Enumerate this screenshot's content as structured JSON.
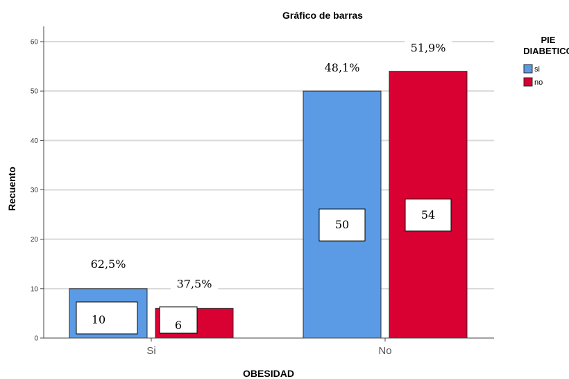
{
  "chart_data": {
    "type": "bar",
    "title": "Gráfico de barras",
    "xlabel": "OBESIDAD",
    "ylabel": "Recuento",
    "categories": [
      "Si",
      "No"
    ],
    "ylim": [
      0,
      60
    ],
    "yticks": [
      0,
      10,
      20,
      30,
      40,
      50,
      60
    ],
    "grid": true,
    "legend_title_lines": [
      "PIE",
      "DIABETICO"
    ],
    "legend_position": "top-right",
    "series": [
      {
        "name": "si",
        "color": "#5B9BE6",
        "values": [
          10,
          50
        ],
        "value_labels": [
          "10",
          "50"
        ],
        "pct_labels": [
          "62,5%",
          "48,1%"
        ]
      },
      {
        "name": "no",
        "color": "#D90032",
        "values": [
          6,
          54
        ],
        "value_labels": [
          "6",
          "54"
        ],
        "pct_labels": [
          "37,5%",
          "51,9%"
        ]
      }
    ]
  }
}
